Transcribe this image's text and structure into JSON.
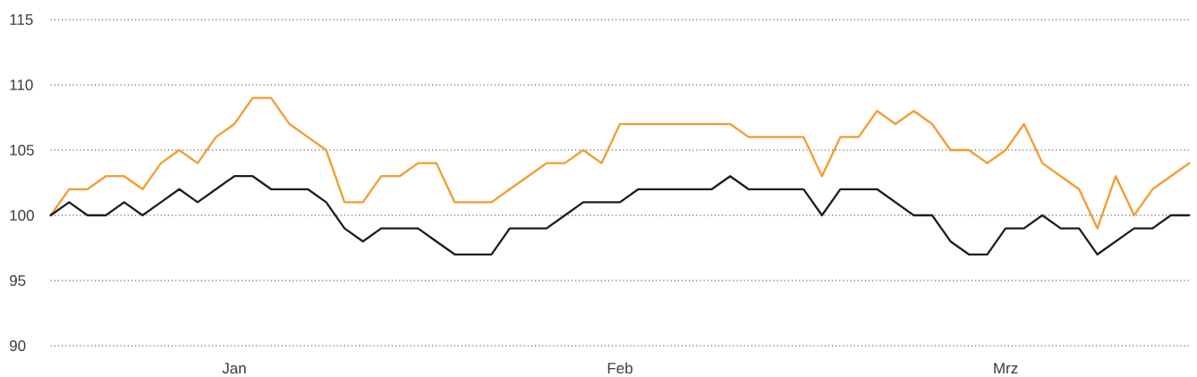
{
  "chart_data": {
    "type": "line",
    "categories": [
      null,
      null,
      null,
      null,
      null,
      null,
      null,
      null,
      null,
      null,
      "Jan",
      null,
      null,
      null,
      null,
      null,
      null,
      null,
      null,
      null,
      null,
      null,
      null,
      null,
      null,
      null,
      null,
      null,
      null,
      null,
      null,
      "Feb",
      null,
      null,
      null,
      null,
      null,
      null,
      null,
      null,
      null,
      null,
      null,
      null,
      null,
      null,
      null,
      null,
      null,
      null,
      null,
      null,
      "Mrz",
      null,
      null,
      null,
      null,
      null,
      null,
      null,
      null,
      null,
      null
    ],
    "series": [
      {
        "color": "#f59b2f",
        "values": [
          100,
          102,
          102,
          103,
          103,
          102,
          104,
          105,
          104,
          106,
          107,
          109,
          109,
          107,
          106,
          105,
          101,
          101,
          103,
          103,
          104,
          104,
          101,
          101,
          101,
          102,
          103,
          104,
          104,
          105,
          104,
          107,
          107,
          107,
          107,
          107,
          107,
          107,
          106,
          106,
          106,
          106,
          103,
          106,
          106,
          108,
          107,
          108,
          107,
          105,
          105,
          104,
          105,
          107,
          104,
          103,
          102,
          99,
          103,
          100,
          102,
          103,
          104
        ]
      },
      {
        "color": "#1e1e1e",
        "values": [
          100,
          101,
          100,
          100,
          101,
          100,
          101,
          102,
          101,
          102,
          103,
          103,
          102,
          102,
          102,
          101,
          99,
          98,
          99,
          99,
          99,
          98,
          97,
          97,
          97,
          99,
          99,
          99,
          100,
          101,
          101,
          101,
          102,
          102,
          102,
          102,
          102,
          103,
          102,
          102,
          102,
          102,
          100,
          102,
          102,
          102,
          101,
          100,
          100,
          98,
          97,
          97,
          99,
          99,
          100,
          99,
          99,
          97,
          98,
          99,
          99,
          100,
          100
        ]
      }
    ],
    "ylim": [
      90,
      115
    ],
    "yticks": [
      90,
      95,
      100,
      105,
      110,
      115
    ],
    "grid": "y"
  }
}
